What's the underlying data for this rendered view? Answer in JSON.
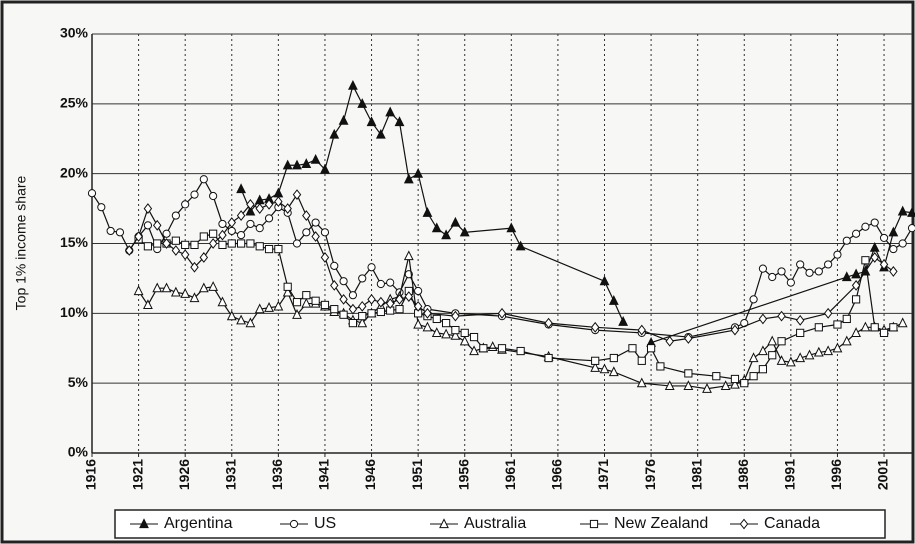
{
  "chart_data": {
    "type": "line",
    "y_label": "Top 1% income share",
    "xlim": [
      1916,
      2004
    ],
    "xticks": [
      1916,
      1921,
      1926,
      1931,
      1936,
      1941,
      1946,
      1951,
      1956,
      1961,
      1966,
      1971,
      1976,
      1981,
      1986,
      1991,
      1996,
      2001
    ],
    "ylim": [
      0,
      30
    ],
    "yticks": [
      {
        "value": 0,
        "label": "0%"
      },
      {
        "value": 5,
        "label": "5%"
      },
      {
        "value": 10,
        "label": "10%"
      },
      {
        "value": 15,
        "label": "15%"
      },
      {
        "value": 20,
        "label": "20%"
      },
      {
        "value": 25,
        "label": "25%"
      },
      {
        "value": 30,
        "label": "30%"
      }
    ],
    "grid": true,
    "legend": "bottom",
    "series": [
      {
        "name": "Argentina",
        "color": "#111111",
        "marker": "filled-triangle",
        "x": [
          1932,
          1933,
          1934,
          1935,
          1936,
          1937,
          1938,
          1939,
          1940,
          1941,
          1942,
          1943,
          1944,
          1945,
          1946,
          1947,
          1948,
          1949,
          1950,
          1951,
          1952,
          1953,
          1954,
          1955,
          1956,
          1961,
          1962,
          1971,
          1972,
          1973,
          1974,
          1976,
          1997,
          1998,
          1999,
          2000,
          2001,
          2002,
          2003,
          2004
        ],
        "values": [
          18.9,
          17.3,
          18.1,
          18.2,
          18.6,
          20.6,
          20.6,
          20.7,
          21.0,
          20.3,
          22.8,
          23.8,
          26.3,
          25.0,
          23.7,
          22.8,
          24.4,
          23.7,
          19.6,
          20.0,
          17.2,
          16.1,
          15.6,
          16.5,
          15.8,
          16.1,
          14.8,
          12.3,
          10.9,
          9.4,
          null,
          7.9,
          12.6,
          12.8,
          13.0,
          14.7,
          13.3,
          15.8,
          17.3,
          17.2
        ]
      },
      {
        "name": "US",
        "color": "#111111",
        "marker": "circle",
        "x": [
          1916,
          1917,
          1918,
          1919,
          1920,
          1921,
          1922,
          1923,
          1924,
          1925,
          1926,
          1927,
          1928,
          1929,
          1930,
          1931,
          1932,
          1933,
          1934,
          1935,
          1936,
          1937,
          1938,
          1939,
          1940,
          1941,
          1942,
          1943,
          1944,
          1945,
          1946,
          1947,
          1948,
          1949,
          1950,
          1951,
          1952,
          1955,
          1960,
          1965,
          1970,
          1975,
          1980,
          1985,
          1986,
          1987,
          1988,
          1989,
          1990,
          1991,
          1992,
          1993,
          1994,
          1995,
          1996,
          1997,
          1998,
          1999,
          2000,
          2001,
          2002,
          2003,
          2004
        ],
        "values": [
          18.6,
          17.6,
          15.9,
          15.8,
          14.5,
          15.5,
          16.3,
          14.6,
          15.7,
          17.0,
          17.8,
          18.5,
          19.6,
          18.4,
          16.4,
          15.9,
          15.6,
          16.4,
          16.1,
          16.8,
          17.6,
          17.2,
          15.0,
          15.8,
          16.5,
          15.8,
          13.4,
          12.3,
          11.3,
          12.5,
          13.3,
          12.1,
          12.2,
          11.5,
          12.8,
          11.6,
          10.3,
          10.0,
          9.8,
          9.2,
          8.8,
          8.6,
          8.3,
          9.0,
          9.3,
          11.0,
          13.2,
          12.6,
          13.0,
          12.2,
          13.5,
          12.9,
          13.0,
          13.5,
          14.2,
          15.2,
          15.7,
          16.2,
          16.5,
          15.4,
          14.6,
          15.0,
          16.1
        ]
      },
      {
        "name": "Australia",
        "color": "#111111",
        "marker": "triangle",
        "x": [
          1921,
          1922,
          1923,
          1924,
          1925,
          1926,
          1927,
          1928,
          1929,
          1930,
          1931,
          1932,
          1933,
          1934,
          1935,
          1936,
          1937,
          1938,
          1939,
          1940,
          1941,
          1942,
          1943,
          1944,
          1945,
          1946,
          1947,
          1948,
          1949,
          1950,
          1951,
          1952,
          1953,
          1954,
          1955,
          1956,
          1957,
          1958,
          1959,
          1960,
          1965,
          1970,
          1971,
          1972,
          1975,
          1978,
          1980,
          1982,
          1984,
          1985,
          1986,
          1987,
          1988,
          1989,
          1990,
          1991,
          1992,
          1993,
          1994,
          1995,
          1996,
          1997,
          1998,
          1999,
          2000,
          2001,
          2002,
          2003
        ],
        "values": [
          11.6,
          10.6,
          11.8,
          11.8,
          11.5,
          11.4,
          11.1,
          11.8,
          11.9,
          10.8,
          9.8,
          9.5,
          9.3,
          10.3,
          10.4,
          10.5,
          11.5,
          9.9,
          10.7,
          10.7,
          10.5,
          10.1,
          10.0,
          9.5,
          9.3,
          10.0,
          10.5,
          11.0,
          11.2,
          14.1,
          9.2,
          9.0,
          8.6,
          8.5,
          8.4,
          8.0,
          7.3,
          7.5,
          7.6,
          7.4,
          6.9,
          6.1,
          6.0,
          5.8,
          5.0,
          4.8,
          4.8,
          4.6,
          4.8,
          4.9,
          5.2,
          6.8,
          7.3,
          8.0,
          6.6,
          6.5,
          6.8,
          7.0,
          7.2,
          7.3,
          7.5,
          8.0,
          8.6,
          9.0,
          9.0,
          8.8,
          9.0,
          9.3
        ]
      },
      {
        "name": "New Zealand",
        "color": "#111111",
        "marker": "square",
        "x": [
          1921,
          1922,
          1923,
          1924,
          1925,
          1926,
          1927,
          1928,
          1929,
          1930,
          1931,
          1932,
          1933,
          1934,
          1935,
          1936,
          1937,
          1938,
          1939,
          1940,
          1941,
          1942,
          1943,
          1944,
          1945,
          1946,
          1947,
          1948,
          1949,
          1950,
          1951,
          1952,
          1953,
          1954,
          1955,
          1956,
          1957,
          1958,
          1960,
          1962,
          1965,
          1970,
          1972,
          1974,
          1975,
          1976,
          1977,
          1980,
          1983,
          1985,
          1986,
          1987,
          1988,
          1989,
          1990,
          1992,
          1994,
          1996,
          1997,
          1998,
          1999,
          2000,
          2001,
          2002
        ],
        "values": [
          15.3,
          14.8,
          15.0,
          15.0,
          15.2,
          14.9,
          14.9,
          15.5,
          15.7,
          14.9,
          15.0,
          15.0,
          15.0,
          14.8,
          14.6,
          14.6,
          11.9,
          10.8,
          11.3,
          10.9,
          10.6,
          10.3,
          9.9,
          9.3,
          9.8,
          10.0,
          10.1,
          10.2,
          10.3,
          11.6,
          10.0,
          9.8,
          9.6,
          9.3,
          8.8,
          8.6,
          8.3,
          7.5,
          7.5,
          7.3,
          6.8,
          6.6,
          6.8,
          7.5,
          6.6,
          7.5,
          6.2,
          5.7,
          5.5,
          5.3,
          5.0,
          5.5,
          6.0,
          7.0,
          8.0,
          8.6,
          9.0,
          9.2,
          9.6,
          11.0,
          13.8,
          9.0,
          8.6,
          9.0
        ]
      },
      {
        "name": "Canada",
        "color": "#111111",
        "marker": "diamond",
        "x": [
          1920,
          1921,
          1922,
          1923,
          1924,
          1925,
          1926,
          1927,
          1928,
          1929,
          1930,
          1931,
          1932,
          1933,
          1934,
          1935,
          1936,
          1937,
          1938,
          1939,
          1940,
          1941,
          1942,
          1943,
          1944,
          1945,
          1946,
          1947,
          1948,
          1949,
          1950,
          1951,
          1952,
          1955,
          1960,
          1965,
          1970,
          1975,
          1978,
          1980,
          1985,
          1988,
          1990,
          1992,
          1995,
          1998,
          2000,
          2001,
          2002
        ],
        "values": [
          14.5,
          15.5,
          17.5,
          16.3,
          15.0,
          14.5,
          14.2,
          13.3,
          14.0,
          15.0,
          15.6,
          16.5,
          17.0,
          17.8,
          17.5,
          17.8,
          18.0,
          17.5,
          18.5,
          17.0,
          15.5,
          14.0,
          12.0,
          11.0,
          10.3,
          10.5,
          11.0,
          10.8,
          10.7,
          11.0,
          11.2,
          10.5,
          10.0,
          9.8,
          10.0,
          9.3,
          9.0,
          8.8,
          8.0,
          8.2,
          8.8,
          9.6,
          9.8,
          9.5,
          10.0,
          12.0,
          14.0,
          13.5,
          13.0
        ]
      }
    ]
  }
}
